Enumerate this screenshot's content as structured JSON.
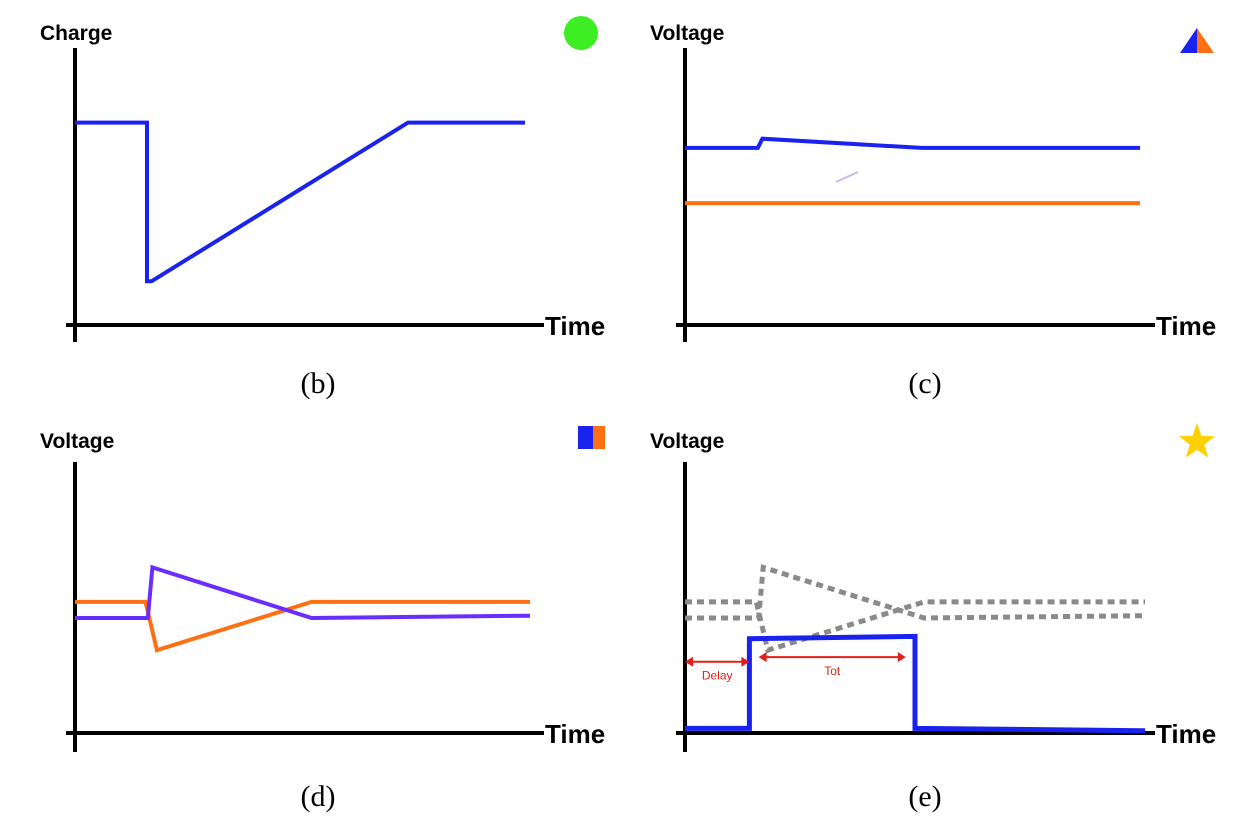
{
  "colors": {
    "blue": "#1a22ee",
    "orange": "#ff7012",
    "purple": "#6a2cff",
    "gray": "#8a8a8a",
    "red": "#e0201a",
    "green": "#3cee22",
    "gold": "#ffd000",
    "axis": "#000000"
  },
  "chart_data": [
    {
      "id": "b",
      "type": "line",
      "caption": "(b)",
      "ylabel": "Charge",
      "xlabel": "Time",
      "marker": "green-circle",
      "xlim": [
        0,
        100
      ],
      "ylim": [
        0,
        100
      ],
      "series": [
        {
          "name": "charge",
          "color": "blue",
          "style": "solid",
          "x": [
            0,
            16,
            16,
            17,
            74,
            100
          ],
          "y": [
            88,
            88,
            19,
            19,
            88,
            88
          ]
        }
      ]
    },
    {
      "id": "c",
      "type": "line",
      "caption": "(c)",
      "ylabel": "Voltage",
      "xlabel": "Time",
      "marker": "blue-orange-triangle",
      "xlim": [
        0,
        100
      ],
      "ylim": [
        0,
        100
      ],
      "series": [
        {
          "name": "blue",
          "color": "blue",
          "style": "solid",
          "x": [
            0,
            16,
            17,
            52,
            100
          ],
          "y": [
            77,
            77,
            81,
            77,
            77
          ]
        },
        {
          "name": "orange",
          "color": "orange",
          "style": "solid",
          "x": [
            0,
            100
          ],
          "y": [
            53,
            53
          ]
        }
      ]
    },
    {
      "id": "d",
      "type": "line",
      "caption": "(d)",
      "ylabel": "Voltage",
      "xlabel": "Time",
      "marker": "blue-orange-square",
      "xlim": [
        0,
        100
      ],
      "ylim": [
        0,
        100
      ],
      "series": [
        {
          "name": "orange",
          "color": "orange",
          "style": "solid",
          "x": [
            0,
            15.5,
            18,
            52,
            100
          ],
          "y": [
            57,
            57,
            36,
            57,
            57
          ]
        },
        {
          "name": "purple",
          "color": "purple",
          "style": "solid",
          "x": [
            0,
            16,
            17,
            52,
            100
          ],
          "y": [
            50,
            50,
            72,
            50,
            51
          ]
        }
      ]
    },
    {
      "id": "e",
      "type": "line",
      "caption": "(e)",
      "ylabel": "Voltage",
      "xlabel": "Time",
      "marker": "gold-star",
      "xlim": [
        0,
        100
      ],
      "ylim": [
        0,
        100
      ],
      "series": [
        {
          "name": "gray-1",
          "color": "gray",
          "style": "dashed",
          "x": [
            0,
            15.5,
            18,
            52,
            100
          ],
          "y": [
            57,
            57,
            36,
            57,
            57
          ]
        },
        {
          "name": "gray-2",
          "color": "gray",
          "style": "dashed",
          "x": [
            0,
            16,
            17,
            52,
            100
          ],
          "y": [
            50,
            50,
            72,
            50,
            51
          ]
        },
        {
          "name": "signal",
          "color": "blue",
          "style": "solid",
          "x": [
            0,
            14,
            14,
            50,
            50,
            100
          ],
          "y": [
            2,
            2,
            41,
            42,
            2,
            1
          ]
        }
      ],
      "annotations": [
        {
          "text": "Delay",
          "x_from": 0,
          "x_to": 14,
          "y": 31
        },
        {
          "text": "Tot",
          "x_from": 16,
          "x_to": 48,
          "y": 33
        }
      ]
    }
  ]
}
